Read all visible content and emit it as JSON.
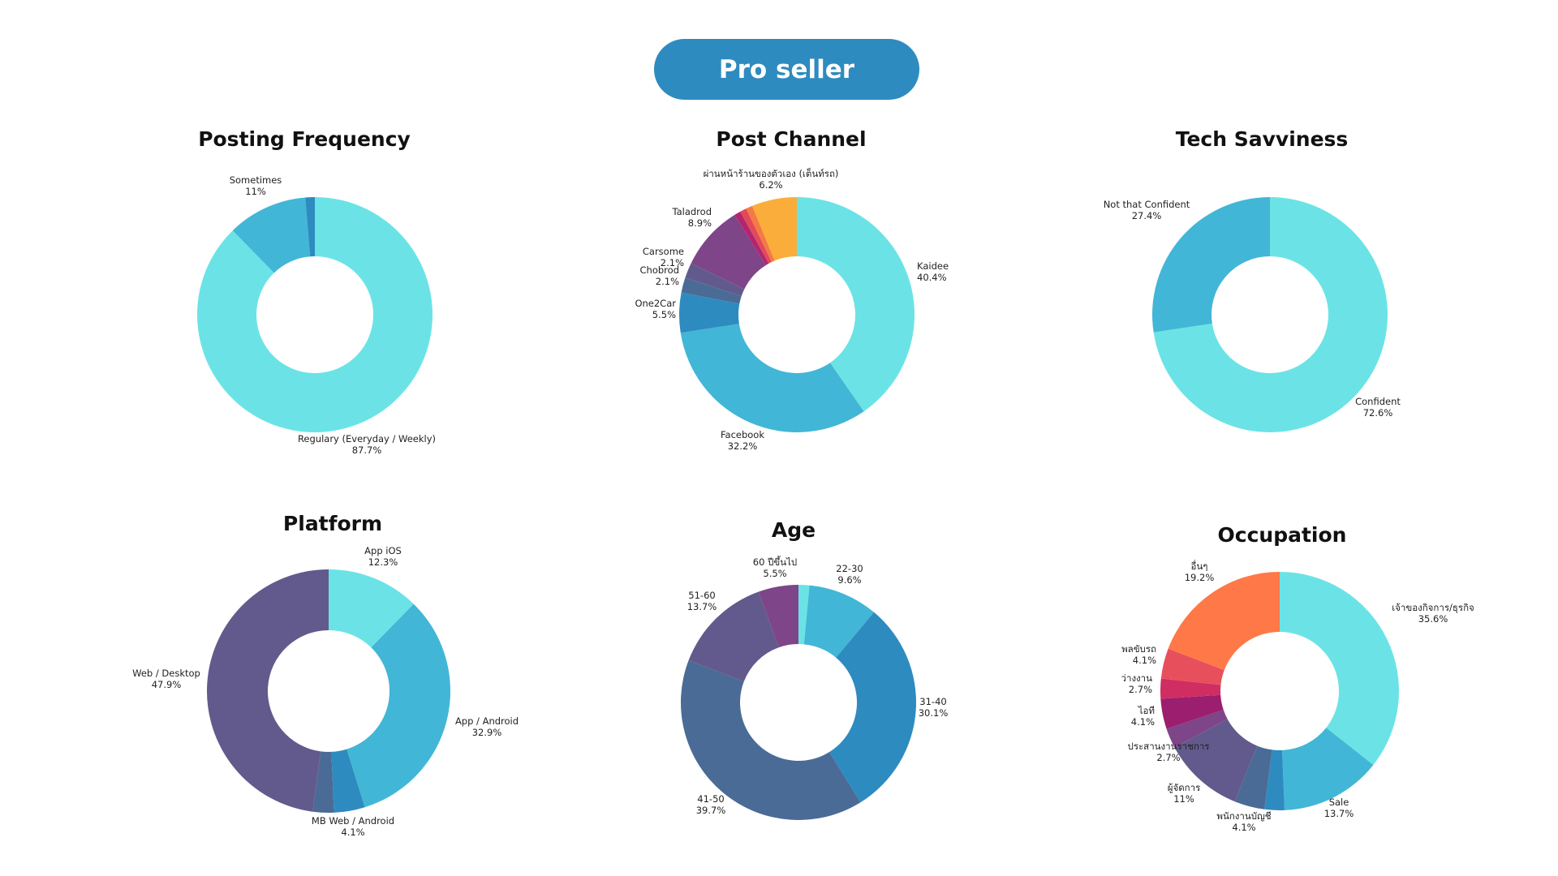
{
  "header": {
    "label": "Pro seller",
    "color": "#2E8BBF"
  },
  "chart_data": [
    {
      "type": "pie",
      "style": "donut",
      "title": "Posting Frequency",
      "slices": [
        {
          "label": "Regulary (Everyday / Weekly)",
          "value": 87.7,
          "display": "87.7%",
          "color": "#6BE3E6"
        },
        {
          "label": "Sometimes",
          "value": 11,
          "display": "11%",
          "color": "#42B6D6"
        },
        {
          "label": "",
          "value": 1.3,
          "display": "",
          "color": "#2E8BBF"
        }
      ]
    },
    {
      "type": "pie",
      "style": "donut",
      "title": "Post Channel",
      "slices": [
        {
          "label": "Kaidee",
          "value": 40.4,
          "display": "40.4%",
          "color": "#6BE3E6"
        },
        {
          "label": "Facebook",
          "value": 32.2,
          "display": "32.2%",
          "color": "#42B6D6"
        },
        {
          "label": "One2Car",
          "value": 5.5,
          "display": "5.5%",
          "color": "#2E8BBF"
        },
        {
          "label": "Chobrod",
          "value": 2.1,
          "display": "2.1%",
          "color": "#4A6B96"
        },
        {
          "label": "Carsome",
          "value": 2.1,
          "display": "2.1%",
          "color": "#625A8C"
        },
        {
          "label": "Taladrod",
          "value": 8.9,
          "display": "8.9%",
          "color": "#7E4588"
        },
        {
          "label": "",
          "value": 0.9,
          "display": "",
          "color": "#B3266F"
        },
        {
          "label": "",
          "value": 0.9,
          "display": "",
          "color": "#E24A5A"
        },
        {
          "label": "",
          "value": 0.9,
          "display": "",
          "color": "#F47A45"
        },
        {
          "label": "ผ่านหน้าร้านของตัวเอง (เต็นท์รถ)",
          "value": 6.2,
          "display": "6.2%",
          "color": "#FBAD3C"
        }
      ]
    },
    {
      "type": "pie",
      "style": "donut",
      "title": "Tech Savviness",
      "slices": [
        {
          "label": "Confident",
          "value": 72.6,
          "display": "72.6%",
          "color": "#6BE3E6"
        },
        {
          "label": "Not that Confident",
          "value": 27.4,
          "display": "27.4%",
          "color": "#42B6D6"
        }
      ]
    },
    {
      "type": "pie",
      "style": "donut",
      "title": "Platform",
      "slices": [
        {
          "label": "App iOS",
          "value": 12.3,
          "display": "12.3%",
          "color": "#6BE3E6"
        },
        {
          "label": "App / Android",
          "value": 32.9,
          "display": "32.9%",
          "color": "#42B6D6"
        },
        {
          "label": "MB Web / Android",
          "value": 4.1,
          "display": "4.1%",
          "color": "#2E8BBF"
        },
        {
          "label": "",
          "value": 2.8,
          "display": "",
          "color": "#4A6B96"
        },
        {
          "label": "Web / Desktop",
          "value": 47.9,
          "display": "47.9%",
          "color": "#625A8C"
        }
      ]
    },
    {
      "type": "pie",
      "style": "donut",
      "title": "Age",
      "slices": [
        {
          "label": "",
          "value": 1.5,
          "display": "",
          "color": "#6BE3E6"
        },
        {
          "label": "22-30",
          "value": 9.6,
          "display": "9.6%",
          "color": "#42B6D6"
        },
        {
          "label": "31-40",
          "value": 30.1,
          "display": "30.1%",
          "color": "#2E8BBF"
        },
        {
          "label": "41-50",
          "value": 39.7,
          "display": "39.7%",
          "color": "#4A6B96"
        },
        {
          "label": "51-60",
          "value": 13.7,
          "display": "13.7%",
          "color": "#625A8C"
        },
        {
          "label": "60 ปีขึ้นไป",
          "value": 5.5,
          "display": "5.5%",
          "color": "#7E4588"
        }
      ]
    },
    {
      "type": "pie",
      "style": "donut",
      "title": "Occupation",
      "slices": [
        {
          "label": "เจ้าของกิจการ/ธุรกิจ",
          "value": 35.6,
          "display": "35.6%",
          "color": "#6BE3E6"
        },
        {
          "label": "Sale",
          "value": 13.7,
          "display": "13.7%",
          "color": "#42B6D6"
        },
        {
          "label": "",
          "value": 2.7,
          "display": "",
          "color": "#2E8BBF"
        },
        {
          "label": "พนักงานบัญชี",
          "value": 4.1,
          "display": "4.1%",
          "color": "#4A6B96"
        },
        {
          "label": "ผู้จัดการ",
          "value": 11,
          "display": "11%",
          "color": "#625A8C"
        },
        {
          "label": "ประสานงานราชการ",
          "value": 2.7,
          "display": "2.7%",
          "color": "#7E4588"
        },
        {
          "label": "ไอที",
          "value": 4.1,
          "display": "4.1%",
          "color": "#9B1F6E"
        },
        {
          "label": "ว่างงาน",
          "value": 2.7,
          "display": "2.7%",
          "color": "#D02D62"
        },
        {
          "label": "พลขับรถ",
          "value": 4.1,
          "display": "4.1%",
          "color": "#E84F5C"
        },
        {
          "label": "อื่นๆ",
          "value": 19.2,
          "display": "19.2%",
          "color": "#FF7847"
        }
      ]
    }
  ]
}
